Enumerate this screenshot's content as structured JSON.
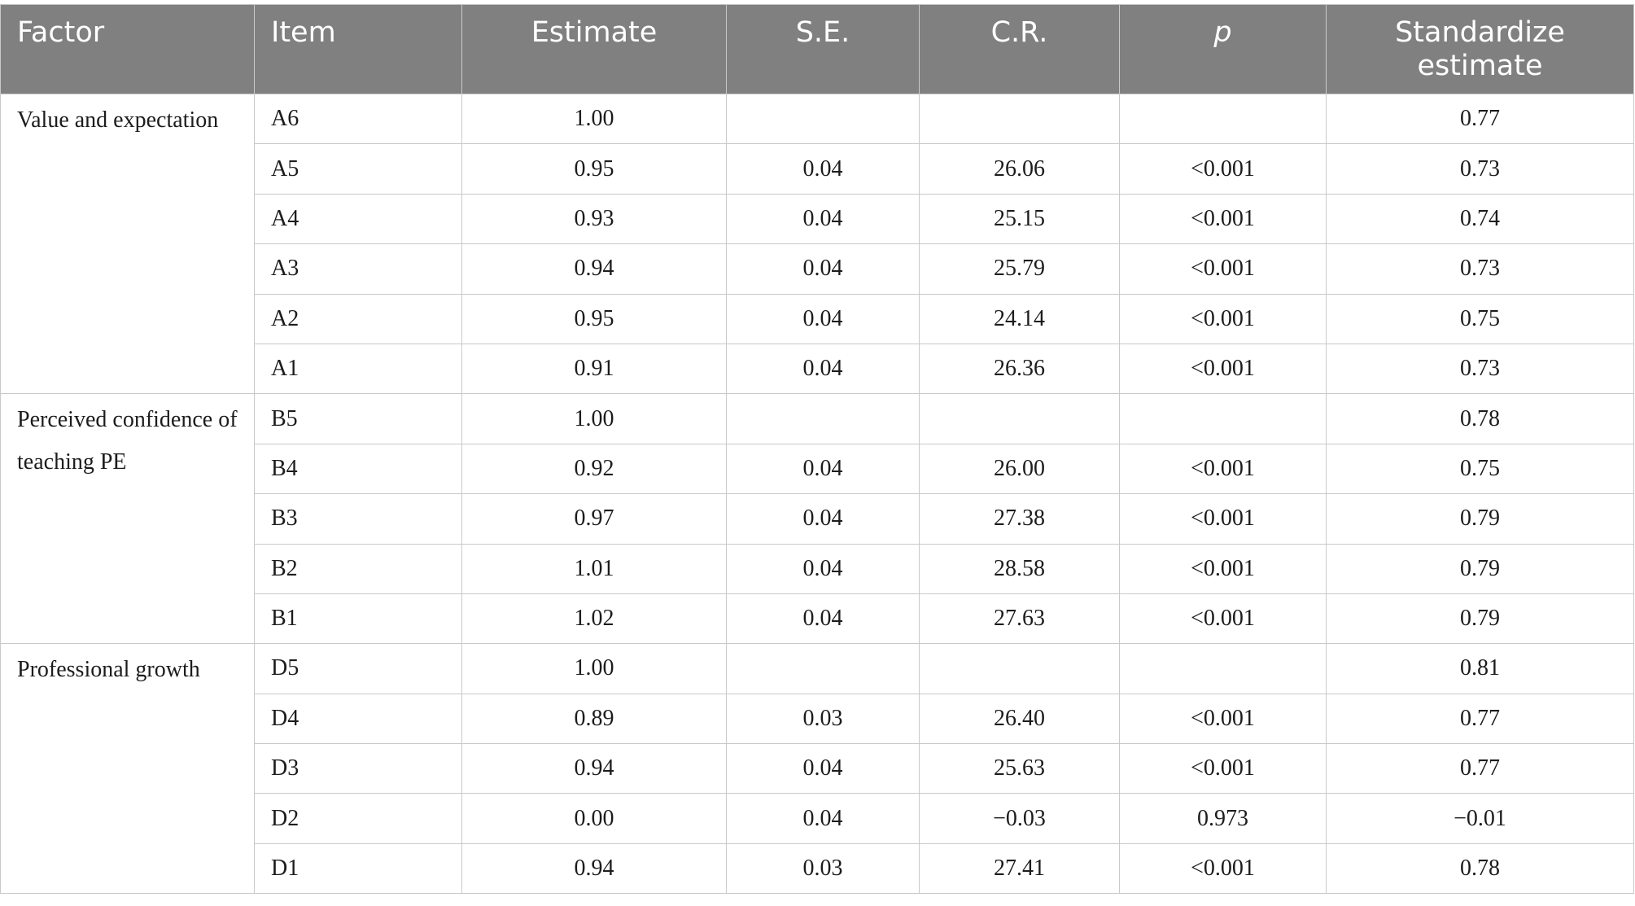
{
  "table": {
    "headers": {
      "factor": "Factor",
      "item": "Item",
      "estimate": "Estimate",
      "se": "S.E.",
      "cr": "C.R.",
      "p": "p",
      "std_line1": "Standardize",
      "std_line2": "estimate"
    },
    "groups": [
      {
        "factor": "Value and expectation",
        "rows": [
          {
            "item": "A6",
            "estimate": "1.00",
            "se": "",
            "cr": "",
            "p": "",
            "std": "0.77"
          },
          {
            "item": "A5",
            "estimate": "0.95",
            "se": "0.04",
            "cr": "26.06",
            "p": "<0.001",
            "std": "0.73"
          },
          {
            "item": "A4",
            "estimate": "0.93",
            "se": "0.04",
            "cr": "25.15",
            "p": "<0.001",
            "std": "0.74"
          },
          {
            "item": "A3",
            "estimate": "0.94",
            "se": "0.04",
            "cr": "25.79",
            "p": "<0.001",
            "std": "0.73"
          },
          {
            "item": "A2",
            "estimate": "0.95",
            "se": "0.04",
            "cr": "24.14",
            "p": "<0.001",
            "std": "0.75"
          },
          {
            "item": "A1",
            "estimate": "0.91",
            "se": "0.04",
            "cr": "26.36",
            "p": "<0.001",
            "std": "0.73"
          }
        ]
      },
      {
        "factor": "Perceived confidence of teaching PE",
        "rows": [
          {
            "item": "B5",
            "estimate": "1.00",
            "se": "",
            "cr": "",
            "p": "",
            "std": "0.78"
          },
          {
            "item": "B4",
            "estimate": "0.92",
            "se": "0.04",
            "cr": "26.00",
            "p": "<0.001",
            "std": "0.75"
          },
          {
            "item": "B3",
            "estimate": "0.97",
            "se": "0.04",
            "cr": "27.38",
            "p": "<0.001",
            "std": "0.79"
          },
          {
            "item": "B2",
            "estimate": "1.01",
            "se": "0.04",
            "cr": "28.58",
            "p": "<0.001",
            "std": "0.79"
          },
          {
            "item": "B1",
            "estimate": "1.02",
            "se": "0.04",
            "cr": "27.63",
            "p": "<0.001",
            "std": "0.79"
          }
        ]
      },
      {
        "factor": "Professional growth",
        "rows": [
          {
            "item": "D5",
            "estimate": "1.00",
            "se": "",
            "cr": "",
            "p": "",
            "std": "0.81"
          },
          {
            "item": "D4",
            "estimate": "0.89",
            "se": "0.03",
            "cr": "26.40",
            "p": "<0.001",
            "std": "0.77"
          },
          {
            "item": "D3",
            "estimate": "0.94",
            "se": "0.04",
            "cr": "25.63",
            "p": "<0.001",
            "std": "0.77"
          },
          {
            "item": "D2",
            "estimate": "0.00",
            "se": "0.04",
            "cr": "−0.03",
            "p": "0.973",
            "std": "−0.01"
          },
          {
            "item": "D1",
            "estimate": "0.94",
            "se": "0.03",
            "cr": "27.41",
            "p": "<0.001",
            "std": "0.78"
          }
        ]
      }
    ]
  }
}
